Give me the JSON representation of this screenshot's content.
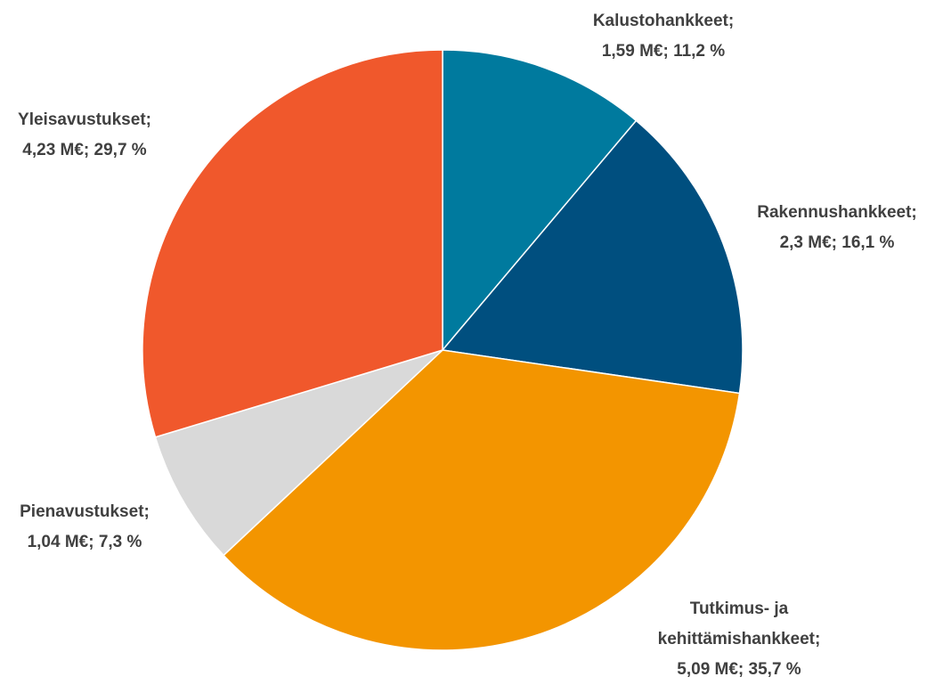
{
  "chart_data": {
    "type": "pie",
    "categories": [
      "Kalustohankkeet;",
      "Rakennushankkeet;",
      "Tutkimus- ja kehittämishankkeet;",
      "Pienavustukset;",
      "Yleisavustukset;"
    ],
    "values": [
      1.59,
      2.3,
      5.09,
      1.04,
      4.23
    ],
    "value_labels": [
      "1,59 M€; 11,2 %",
      "2,3 M€; 16,1 %",
      "5,09 M€; 35,7 %",
      "1,04 M€; 7,3 %",
      "4,23 M€; 29,7 %"
    ],
    "colors": [
      "#007a9e",
      "#004f7f",
      "#f39500",
      "#d9d9d9",
      "#f0582c"
    ]
  }
}
